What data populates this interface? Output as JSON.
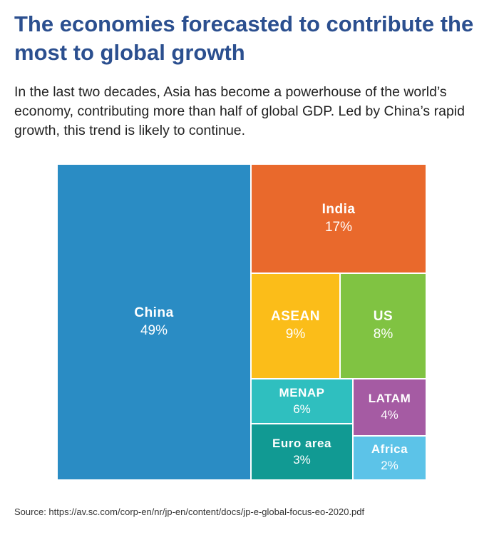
{
  "header": {
    "title": "The economies forecasted to contribute the most to global growth",
    "subtitle": "In the last two decades, Asia has become a powerhouse of the world’s economy, contributing more than half of global GDP. Led by China’s rapid growth, this trend is likely to continue."
  },
  "source": "Source: https://av.sc.com/corp-en/nr/jp-en/content/docs/jp-e-global-focus-eo-2020.pdf",
  "chart_data": {
    "type": "treemap",
    "unit": "%",
    "items": [
      {
        "label": "China",
        "value": 49,
        "value_label": "49%",
        "color": "#2a8cc4"
      },
      {
        "label": "India",
        "value": 17,
        "value_label": "17%",
        "color": "#e9692c"
      },
      {
        "label": "ASEAN",
        "value": 9,
        "value_label": "9%",
        "color": "#fbbd19"
      },
      {
        "label": "US",
        "value": 8,
        "value_label": "8%",
        "color": "#80c342"
      },
      {
        "label": "MENAP",
        "value": 6,
        "value_label": "6%",
        "color": "#2fbfbf"
      },
      {
        "label": "LATAM",
        "value": 4,
        "value_label": "4%",
        "color": "#a55ba3"
      },
      {
        "label": "Euro area",
        "value": 3,
        "value_label": "3%",
        "color": "#119a93"
      },
      {
        "label": "Africa",
        "value": 2,
        "value_label": "2%",
        "color": "#5cc3e8"
      }
    ]
  }
}
